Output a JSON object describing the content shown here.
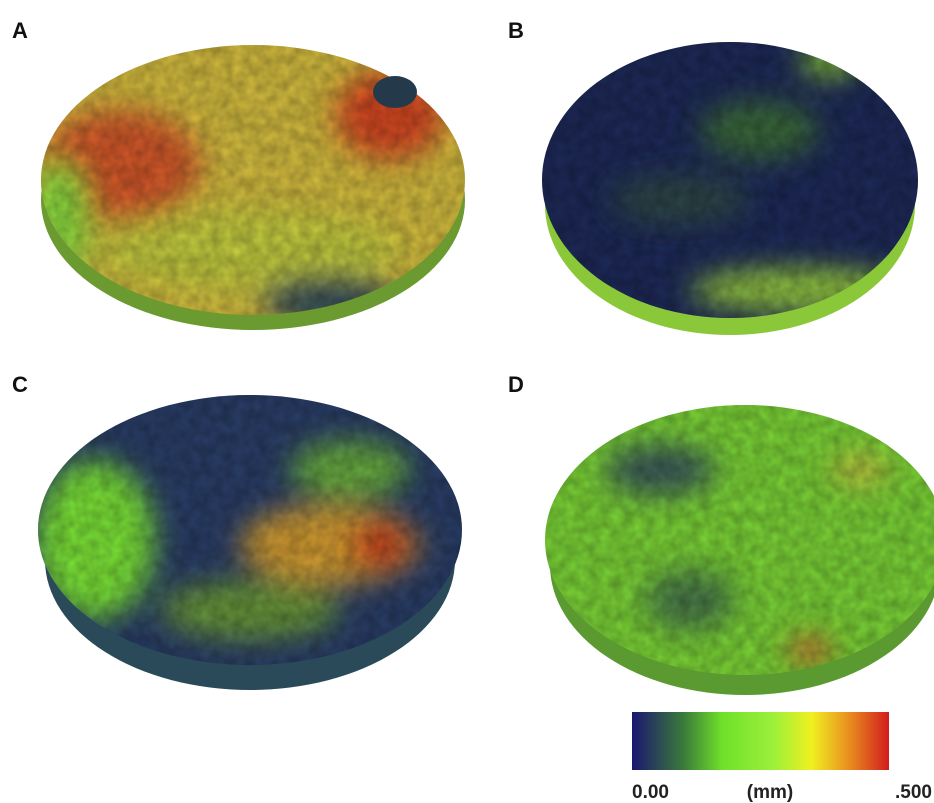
{
  "panels": [
    {
      "label": "A"
    },
    {
      "label": "B"
    },
    {
      "label": "C"
    },
    {
      "label": "D"
    }
  ],
  "colorbar": {
    "min_label": "0.00",
    "unit": "(mm)",
    "max_label": ".500"
  }
}
